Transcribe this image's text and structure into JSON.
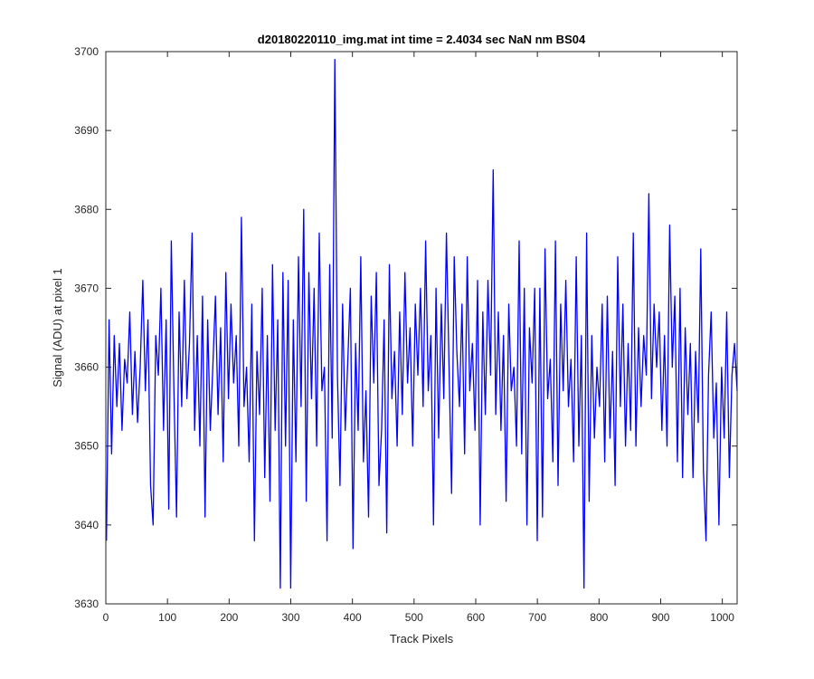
{
  "chart_data": {
    "type": "line",
    "title": "d20180220110_img.mat int time = 2.4034 sec  NaN nm BS04",
    "xlabel": "Track Pixels",
    "ylabel": "Signal (ADU) at pixel 1",
    "xlim": [
      0,
      1024
    ],
    "ylim": [
      3630,
      3700
    ],
    "xticks": [
      0,
      100,
      200,
      300,
      400,
      500,
      600,
      700,
      800,
      900,
      1000
    ],
    "yticks": [
      3630,
      3640,
      3650,
      3660,
      3670,
      3680,
      3690,
      3700
    ],
    "grid": false,
    "series": [
      {
        "color": "#0000ff",
        "x_start": 1,
        "x_step": 1,
        "values": [
          3638,
          3666,
          3649,
          3664,
          3655,
          3663,
          3652,
          3661,
          3658,
          3667,
          3654,
          3662,
          3653,
          3660,
          3671,
          3657,
          3666,
          3645,
          3640,
          3664,
          3659,
          3670,
          3652,
          3666,
          3642,
          3676,
          3657,
          3641,
          3667,
          3655,
          3671,
          3656,
          3663,
          3677,
          3652,
          3664,
          3650,
          3669,
          3641,
          3666,
          3652,
          3660,
          3669,
          3654,
          3665,
          3648,
          3672,
          3656,
          3668,
          3658,
          3664,
          3650,
          3679,
          3655,
          3660,
          3648,
          3668,
          3638,
          3662,
          3654,
          3670,
          3646,
          3664,
          3643,
          3673,
          3652,
          3666,
          3632,
          3672,
          3650,
          3671,
          3632,
          3666,
          3648,
          3674,
          3655,
          3680,
          3643,
          3672,
          3656,
          3670,
          3650,
          3677,
          3657,
          3660,
          3638,
          3673,
          3651,
          3699,
          3659,
          3645,
          3668,
          3652,
          3661,
          3670,
          3637,
          3663,
          3652,
          3674,
          3648,
          3657,
          3641,
          3669,
          3658,
          3672,
          3645,
          3652,
          3666,
          3639,
          3673,
          3656,
          3662,
          3650,
          3667,
          3654,
          3672,
          3658,
          3665,
          3650,
          3668,
          3659,
          3670,
          3655,
          3676,
          3657,
          3664,
          3640,
          3670,
          3651,
          3668,
          3656,
          3677,
          3660,
          3644,
          3674,
          3662,
          3655,
          3668,
          3649,
          3674,
          3657,
          3663,
          3652,
          3671,
          3640,
          3667,
          3654,
          3671,
          3659,
          3685,
          3654,
          3667,
          3652,
          3664,
          3643,
          3668,
          3657,
          3660,
          3650,
          3676,
          3649,
          3670,
          3640,
          3665,
          3658,
          3670,
          3638,
          3670,
          3641,
          3675,
          3656,
          3661,
          3648,
          3676,
          3645,
          3668,
          3657,
          3671,
          3655,
          3661,
          3648,
          3674,
          3650,
          3664,
          3632,
          3677,
          3643,
          3664,
          3651,
          3660,
          3655,
          3668,
          3648,
          3669,
          3651,
          3662,
          3645,
          3674,
          3655,
          3668,
          3650,
          3663,
          3652,
          3677,
          3650,
          3665,
          3655,
          3664,
          3659,
          3682,
          3656,
          3668,
          3660,
          3667,
          3652,
          3664,
          3650,
          3678,
          3660,
          3669,
          3648,
          3670,
          3646,
          3665,
          3654,
          3663,
          3646,
          3662,
          3653,
          3675,
          3647,
          3638,
          3659,
          3667,
          3651,
          3658,
          3640,
          3660,
          3651,
          3667,
          3646,
          3659,
          3663,
          3657
        ]
      }
    ]
  }
}
